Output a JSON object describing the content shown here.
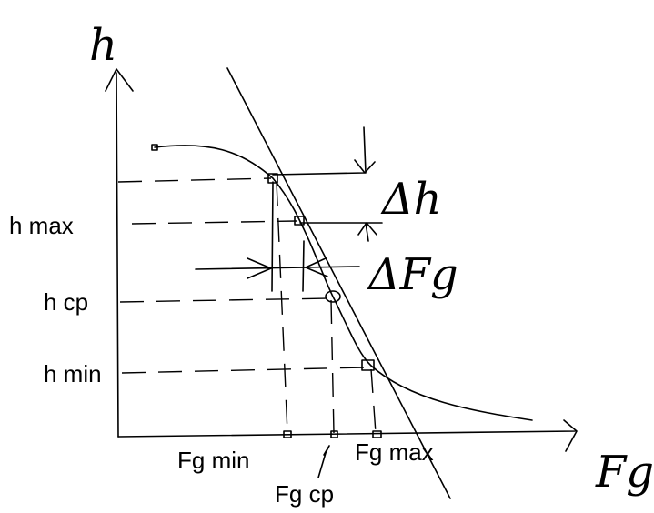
{
  "axes": {
    "y_label": "h",
    "x_label": "Fg"
  },
  "y_labels": [
    "h max",
    "h cp",
    "h min"
  ],
  "x_labels": [
    "Fg min",
    "Fg cp",
    "Fg max"
  ],
  "annotations": {
    "delta_h": "Δh",
    "delta_fg": "ΔFg"
  }
}
